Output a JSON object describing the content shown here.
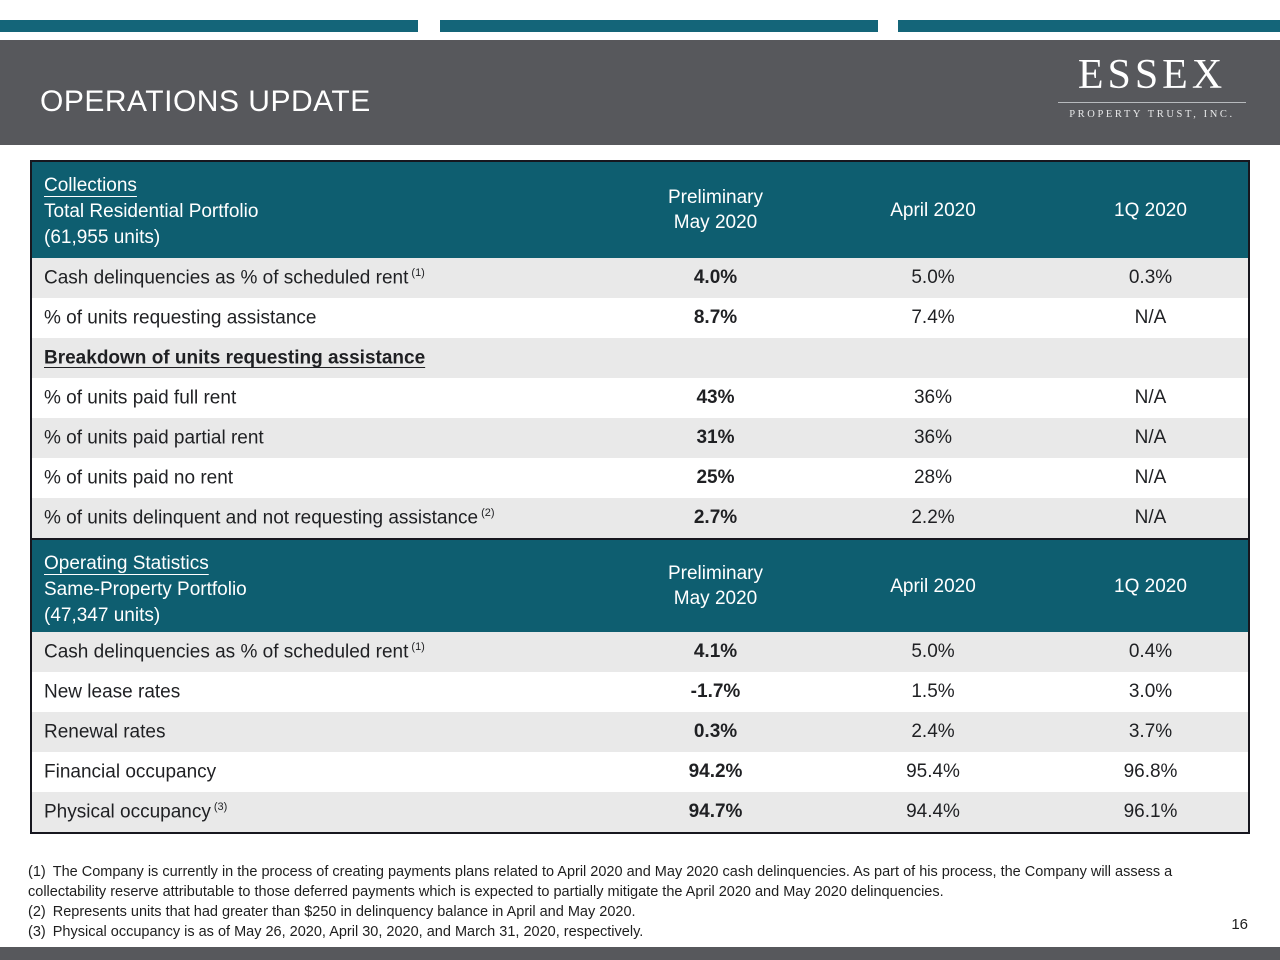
{
  "header": {
    "title": "OPERATIONS UPDATE",
    "logo": {
      "brand": "ESSEX",
      "subtitle": "PROPERTY TRUST, INC."
    }
  },
  "tables": [
    {
      "title": "Collections",
      "subtitle": "Total Residential Portfolio",
      "units": "(61,955 units)",
      "col_headers": {
        "c1_line1": "Preliminary",
        "c1_line2": "May 2020",
        "c2": "April 2020",
        "c3": "1Q 2020"
      },
      "rows": [
        {
          "label": "Cash delinquencies as % of scheduled rent",
          "sup": "(1)",
          "may": "4.0%",
          "april": "5.0%",
          "q1": "0.3%"
        },
        {
          "label": "% of units requesting assistance",
          "sup": "",
          "may": "8.7%",
          "april": "7.4%",
          "q1": "N/A"
        },
        {
          "label": "Breakdown of units requesting assistance",
          "sup": "",
          "may": "",
          "april": "",
          "q1": ""
        },
        {
          "label": "% of units paid full rent",
          "sup": "",
          "may": "43%",
          "april": "36%",
          "q1": "N/A"
        },
        {
          "label": "% of units paid partial rent",
          "sup": "",
          "may": "31%",
          "april": "36%",
          "q1": "N/A"
        },
        {
          "label": "% of units paid no rent",
          "sup": "",
          "may": "25%",
          "april": "28%",
          "q1": "N/A"
        },
        {
          "label": "% of units delinquent and not requesting assistance",
          "sup": "(2)",
          "may": "2.7%",
          "april": "2.2%",
          "q1": "N/A"
        }
      ]
    },
    {
      "title": "Operating Statistics",
      "subtitle": "Same-Property Portfolio",
      "units": "(47,347 units)",
      "col_headers": {
        "c1_line1": "Preliminary",
        "c1_line2": "May 2020",
        "c2": "April 2020",
        "c3": "1Q 2020"
      },
      "rows": [
        {
          "label": "Cash delinquencies as % of scheduled rent",
          "sup": "(1)",
          "may": "4.1%",
          "april": "5.0%",
          "q1": "0.4%"
        },
        {
          "label": "New lease rates",
          "sup": "",
          "may": "-1.7%",
          "april": "1.5%",
          "q1": "3.0%"
        },
        {
          "label": "Renewal rates",
          "sup": "",
          "may": "0.3%",
          "april": "2.4%",
          "q1": "3.7%"
        },
        {
          "label": "Financial occupancy",
          "sup": "",
          "may": "94.2%",
          "april": "95.4%",
          "q1": "96.8%"
        },
        {
          "label": "Physical occupancy",
          "sup": "(3)",
          "may": "94.7%",
          "april": "94.4%",
          "q1": "96.1%"
        }
      ]
    }
  ],
  "footnotes": [
    {
      "marker": "(1)",
      "text": "The Company is currently in the process of creating payments plans related to April 2020 and May 2020 cash delinquencies. As part of his process, the Company will assess a collectability reserve attributable to those deferred payments which is expected to partially mitigate the April 2020 and May 2020 delinquencies."
    },
    {
      "marker": "(2)",
      "text": "Represents units that had greater than $250 in delinquency balance in April and May 2020."
    },
    {
      "marker": "(3)",
      "text": "Physical occupancy is as of May 26, 2020, April 30, 2020, and March 31, 2020, respectively."
    }
  ],
  "page_number": "16",
  "colors": {
    "accent_teal": "#146579",
    "table_header_teal": "#0e5e70",
    "header_gray": "#57585c",
    "row_shade": "#e9e9e9",
    "table_border": "#17171f"
  }
}
